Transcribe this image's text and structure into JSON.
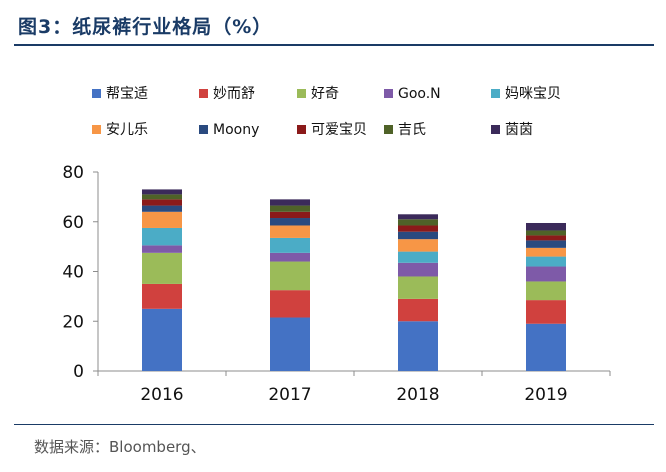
{
  "figure": {
    "title": "图3：纸尿裤行业格局（%）",
    "source": "数据来源：Bloomberg、"
  },
  "chart_data": {
    "type": "bar",
    "stacked": true,
    "title": "纸尿裤行业格局（%）",
    "xlabel": "",
    "ylabel": "",
    "ylim": [
      0,
      80
    ],
    "yticks": [
      0,
      20,
      40,
      60,
      80
    ],
    "categories": [
      "2016",
      "2017",
      "2018",
      "2019"
    ],
    "legend_position": "top",
    "series": [
      {
        "name": "帮宝适",
        "color": "#4472c4",
        "values": [
          25,
          21.5,
          20,
          19
        ]
      },
      {
        "name": "妙而舒",
        "color": "#d0413e",
        "values": [
          10,
          11,
          9,
          9.5
        ]
      },
      {
        "name": "好奇",
        "color": "#9bbb59",
        "values": [
          12.5,
          11.5,
          9,
          7.5
        ]
      },
      {
        "name": "Goo.N",
        "color": "#7e5aa8",
        "values": [
          3,
          3.5,
          5.5,
          6
        ]
      },
      {
        "name": "妈咪宝贝",
        "color": "#4bacc6",
        "values": [
          7,
          6,
          4.5,
          4
        ]
      },
      {
        "name": "安儿乐",
        "color": "#f79646",
        "values": [
          6.5,
          5,
          5,
          3.5
        ]
      },
      {
        "name": "Moony",
        "color": "#2a4a7f",
        "values": [
          2.5,
          3,
          3,
          3
        ]
      },
      {
        "name": "可爱宝贝",
        "color": "#8b1a1a",
        "values": [
          2.5,
          2.5,
          2.5,
          2
        ]
      },
      {
        "name": "吉氏",
        "color": "#4f6228",
        "values": [
          2,
          2.5,
          2.5,
          2
        ]
      },
      {
        "name": "茵茵",
        "color": "#3b2a5a",
        "values": [
          2,
          2.5,
          2,
          3
        ]
      }
    ]
  }
}
